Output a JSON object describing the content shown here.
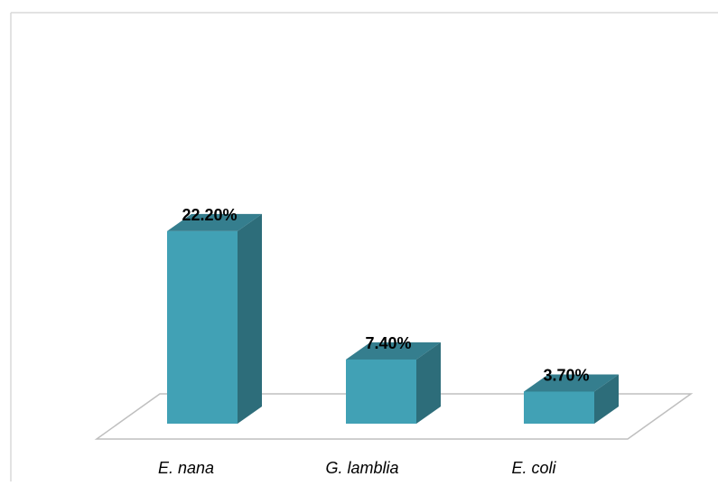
{
  "chart_data": {
    "type": "bar",
    "style": "3d-column",
    "categories": [
      "E. nana",
      "G. lamblia",
      "E. coli"
    ],
    "values": [
      22.2,
      7.4,
      3.7
    ],
    "data_labels": [
      "22.20%",
      "7.40%",
      "3.70%"
    ],
    "unit": "%",
    "title": "",
    "xlabel": "",
    "ylabel": "",
    "ylim": [
      0,
      50
    ],
    "grid": false,
    "legend": "none",
    "colors": {
      "bar_front": "#41a1b5",
      "bar_side": "#2d6d7a",
      "bar_top": "#357e8e",
      "floor_stroke": "#bfbfbf",
      "frame_stroke": "#d9d9d9"
    }
  }
}
